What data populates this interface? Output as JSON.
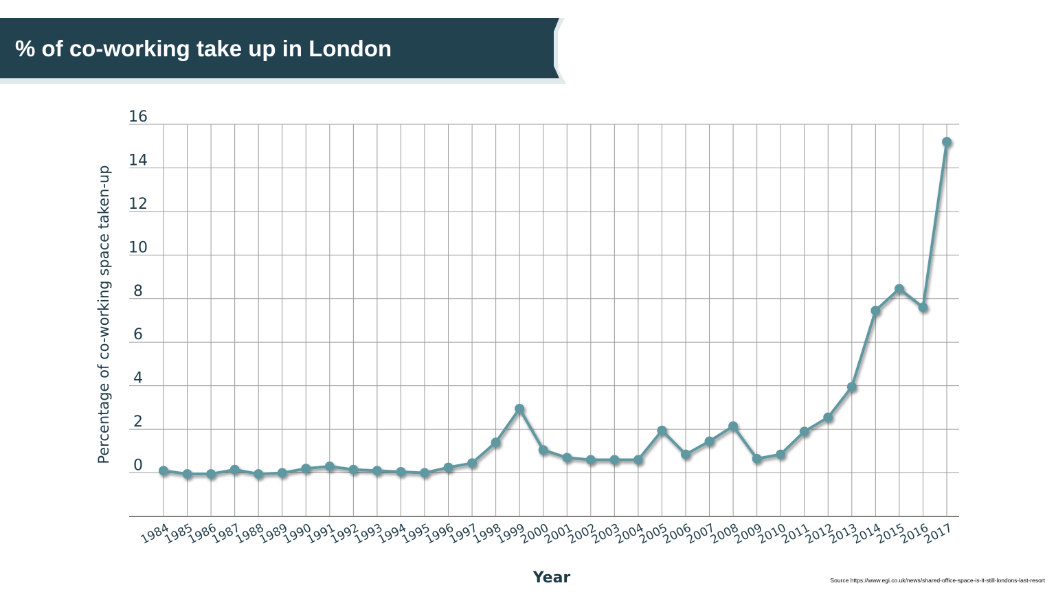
{
  "page": {
    "title": "% of co-working take up in London",
    "source": "Source https://www.egi.co.uk/news/shared-office-space-is-it-still-londons-last-resort"
  },
  "colors": {
    "banner": "#234250",
    "banner_edge": "#e8eef0",
    "line": "#5f98a1",
    "grid": "#9a9a9a",
    "axis_text": "#1e3a48"
  },
  "chart_data": {
    "type": "line",
    "xlabel": "Year",
    "ylabel": "Percentage of co-working space taken-up",
    "ylim": [
      -2,
      16
    ],
    "yticks": [
      0,
      2,
      4,
      6,
      8,
      10,
      12,
      14,
      16
    ],
    "grid": true,
    "categories": [
      "1984",
      "1985",
      "1986",
      "1987",
      "1988",
      "1989",
      "1990",
      "1991",
      "1992",
      "1993",
      "1994",
      "1995",
      "1996",
      "1997",
      "1998",
      "1999",
      "2000",
      "2001",
      "2002",
      "2003",
      "2004",
      "2005",
      "2006",
      "2007",
      "2008",
      "2009",
      "2010",
      "2011",
      "2012",
      "2013",
      "2014",
      "2015",
      "2016",
      "2017"
    ],
    "series": [
      {
        "values": [
          0.1,
          -0.05,
          -0.05,
          0.15,
          -0.05,
          0.0,
          0.2,
          0.3,
          0.15,
          0.1,
          0.05,
          0.0,
          0.25,
          0.45,
          1.4,
          2.95,
          1.05,
          0.7,
          0.6,
          0.6,
          0.6,
          1.95,
          0.85,
          1.45,
          2.15,
          0.65,
          0.85,
          1.9,
          2.55,
          3.95,
          7.45,
          8.45,
          7.6,
          15.2
        ]
      }
    ]
  }
}
